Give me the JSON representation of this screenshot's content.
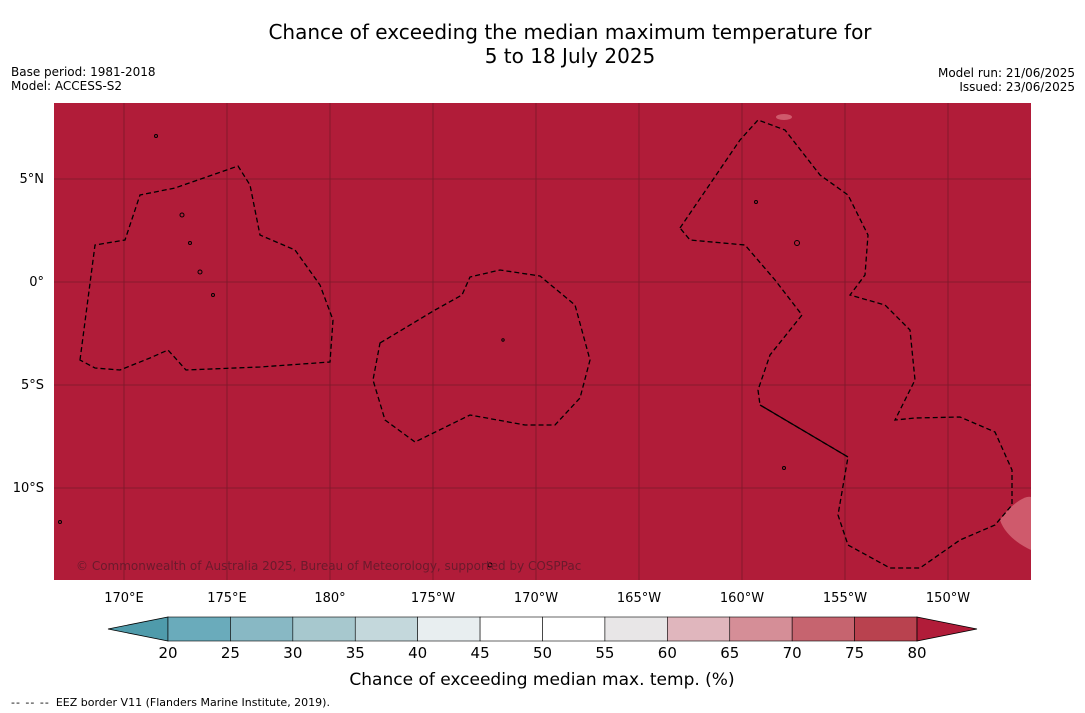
{
  "header": {
    "title_line1": "Chance of exceeding the median maximum temperature for",
    "title_line2": "5 to 18 July 2025",
    "base_period": "Base period: 1981-2018",
    "model": "Model: ACCESS-S2",
    "model_run": "Model run: 21/06/2025",
    "issued": "Issued: 23/06/2025"
  },
  "map": {
    "fill_color": "#b11c39",
    "warm_patch_color": "#cf5a6c",
    "grid_color": "#7a1a2a",
    "border_color": "#000000",
    "lat_labels": [
      "5°N",
      "0°",
      "5°S",
      "10°S"
    ],
    "lon_labels": [
      "170°E",
      "175°E",
      "180°",
      "175°W",
      "170°W",
      "165°W",
      "160°W",
      "155°W",
      "150°W"
    ],
    "copyright": "© Commonwealth of Australia 2025, Bureau of Meteorology, supported by COSPPac"
  },
  "colorbar": {
    "title": "Chance of exceeding median max. temp. (%)",
    "ticks": [
      "20",
      "25",
      "30",
      "35",
      "40",
      "45",
      "50",
      "55",
      "60",
      "65",
      "70",
      "75",
      "80"
    ],
    "under_color": "#4f9bab",
    "over_color": "#b11c39",
    "bin_colors": [
      "#6aabbb",
      "#88b8c4",
      "#a7c8ce",
      "#c4d8dc",
      "#e8eef0",
      "#ffffff",
      "#ffffff",
      "#e8e6e7",
      "#e0b6bd",
      "#d58e97",
      "#c6646f",
      "#b9424f"
    ]
  },
  "footer": {
    "dashes": "-- -- --",
    "text": "EEZ border V11 (Flanders Marine Institute, 2019)."
  }
}
